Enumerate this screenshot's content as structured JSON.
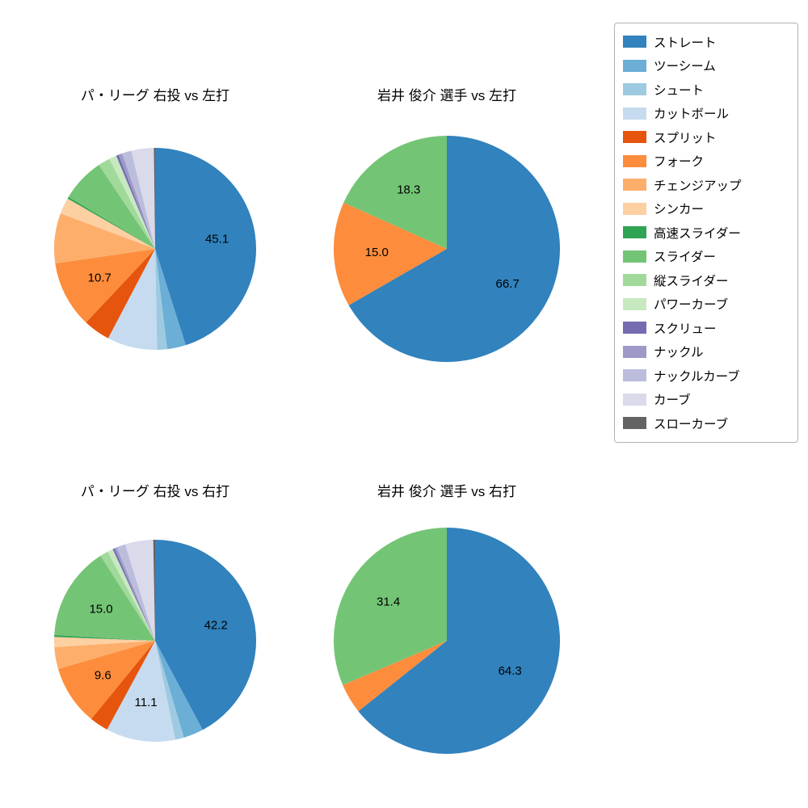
{
  "chart_data": {
    "type": "pie",
    "start_angle_deg": 90,
    "direction": "clockwise",
    "label_threshold_pct": 9.5,
    "label_radius_ratio": 0.62,
    "legend_position": "upper right, outside",
    "categories": [
      "ストレート",
      "ツーシーム",
      "シュート",
      "カットボール",
      "スプリット",
      "フォーク",
      "チェンジアップ",
      "シンカー",
      "高速スライダー",
      "スライダー",
      "縦スライダー",
      "パワーカーブ",
      "スクリュー",
      "ナックル",
      "ナックルカーブ",
      "カーブ",
      "スローカーブ"
    ],
    "colors": [
      "#3182bd",
      "#6baed6",
      "#9ecae1",
      "#c6dbef",
      "#e6550d",
      "#fd8d3c",
      "#fdae6b",
      "#fdd0a2",
      "#31a354",
      "#74c476",
      "#a1d99b",
      "#c7e9c0",
      "#756bb1",
      "#9e9ac8",
      "#bcbddc",
      "#dadaeb",
      "#636363"
    ],
    "charts": [
      {
        "title": "パ・リーグ 右投 vs 左打",
        "values": [
          45.1,
          3.0,
          1.6,
          8.0,
          4.3,
          10.7,
          8.0,
          2.6,
          0.3,
          7.0,
          1.9,
          1.2,
          0.4,
          0.6,
          1.5,
          3.6,
          0.2
        ],
        "shown_value_labels": [
          "45.1",
          "10.7"
        ]
      },
      {
        "title": "岩井 俊介 選手 vs 左打",
        "values": [
          66.7,
          0,
          0,
          0,
          0,
          15.0,
          0,
          0,
          0,
          18.3,
          0,
          0,
          0,
          0,
          0,
          0,
          0
        ],
        "shown_value_labels": [
          "66.7",
          "15.0",
          "18.3"
        ]
      },
      {
        "title": "パ・リーグ 右投 vs 右打",
        "values": [
          42.2,
          3.2,
          1.4,
          11.1,
          3.0,
          9.6,
          3.5,
          1.6,
          0.3,
          15.0,
          1.3,
          0.9,
          0.3,
          0.4,
          1.4,
          4.5,
          0.3
        ],
        "shown_value_labels": [
          "42.2",
          "11.1",
          "9.6",
          "15.0"
        ]
      },
      {
        "title": "岩井 俊介 選手 vs 右打",
        "values": [
          64.3,
          0,
          0,
          0,
          0,
          4.3,
          0,
          0,
          0,
          31.4,
          0,
          0,
          0,
          0,
          0,
          0,
          0
        ],
        "shown_value_labels": [
          "64.3",
          "31.4"
        ]
      }
    ]
  }
}
